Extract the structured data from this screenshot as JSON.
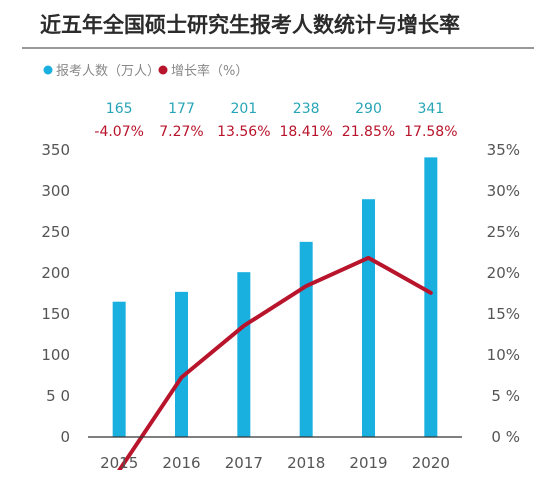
{
  "title": "近五年全国硕士研究生报考人数统计与增长率",
  "legend": {
    "count_label": "报考人数（万人）",
    "rate_label": "增长率（%）"
  },
  "colors": {
    "bar": "#19b0e0",
    "line": "#b8142c",
    "count_text": "#27a5b6",
    "rate_text": "#b8142c",
    "title_rule": "#333333",
    "axis": "#333333"
  },
  "chart_data": {
    "type": "bar",
    "title": "近五年全国硕士研究生报考人数统计与增长率",
    "categories": [
      "2015",
      "2016",
      "2017",
      "2018",
      "2019",
      "2020"
    ],
    "series": [
      {
        "name": "报考人数（万人）",
        "type": "bar",
        "axis": "left",
        "values": [
          165,
          177,
          201,
          238,
          290,
          341
        ]
      },
      {
        "name": "增长率（%）",
        "type": "line",
        "axis": "right",
        "values": [
          -4.07,
          7.27,
          13.56,
          18.41,
          21.85,
          17.58
        ]
      }
    ],
    "value_labels": [
      "165",
      "177",
      "201",
      "238",
      "290",
      "341"
    ],
    "rate_labels": [
      "-4.07%",
      "7.27%",
      "13.56%",
      "18.41%",
      "21.85%",
      "17.58%"
    ],
    "y_left_ticks": [
      "0",
      "5 0",
      "100",
      "150",
      "200",
      "250",
      "300",
      "350"
    ],
    "y_right_ticks": [
      "0 %",
      "5 %",
      "10%",
      "15%",
      "20%",
      "25%",
      "30%",
      "35%"
    ],
    "ylim_left": [
      0,
      350
    ],
    "ylim_right": [
      0,
      35
    ],
    "grid": false,
    "legend_position": "top-left"
  }
}
